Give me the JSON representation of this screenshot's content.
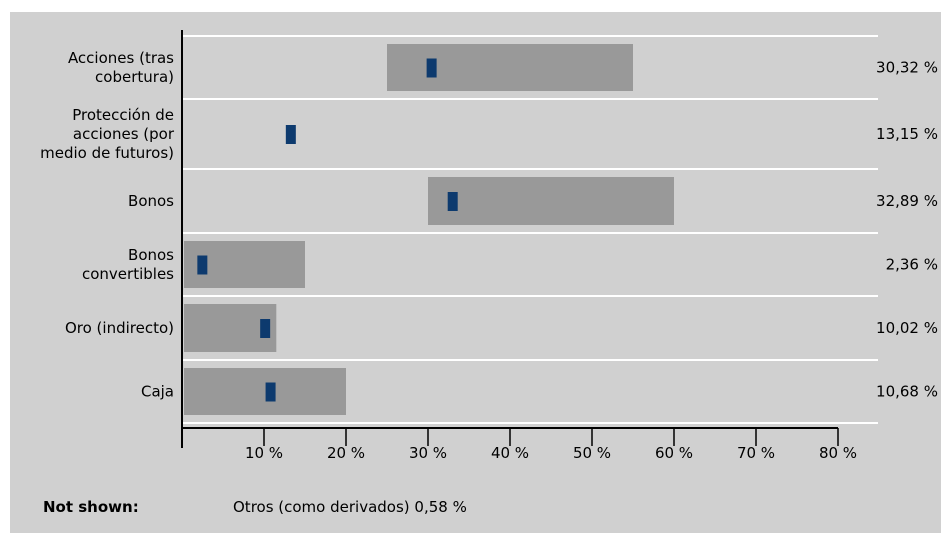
{
  "chart_data": {
    "type": "bar",
    "subtype": "range-with-marker",
    "categories": [
      [
        "Acciones (tras",
        "cobertura)"
      ],
      [
        "Protección de",
        "acciones (por",
        "medio de futuros)"
      ],
      [
        "Bonos"
      ],
      [
        "Bonos",
        "convertibles"
      ],
      [
        "Oro (indirecto)"
      ],
      [
        "Caja"
      ]
    ],
    "ranges": [
      [
        25,
        55
      ],
      null,
      [
        30,
        60
      ],
      [
        0,
        15
      ],
      [
        0,
        11.5
      ],
      [
        0,
        20
      ]
    ],
    "values": [
      30.32,
      13.15,
      32.89,
      2.36,
      10.02,
      10.68
    ],
    "value_labels": [
      "30,32 %",
      "13,15 %",
      "32,89 %",
      "2,36 %",
      "10,02 %",
      "10,68 %"
    ],
    "x_ticks": [
      10,
      20,
      30,
      40,
      50,
      60,
      70,
      80
    ],
    "x_tick_labels": [
      "10 %",
      "20 %",
      "30 %",
      "40 %",
      "50 %",
      "60 %",
      "70 %",
      "80 %"
    ],
    "xlim": [
      0,
      80
    ],
    "colors": {
      "range": "#999999",
      "marker": "#0d3a6e",
      "background": "#d0d0d0",
      "separator": "#ffffff"
    }
  },
  "note": {
    "label": "Not shown:",
    "text": "Otros (como derivados) 0,58 %"
  }
}
